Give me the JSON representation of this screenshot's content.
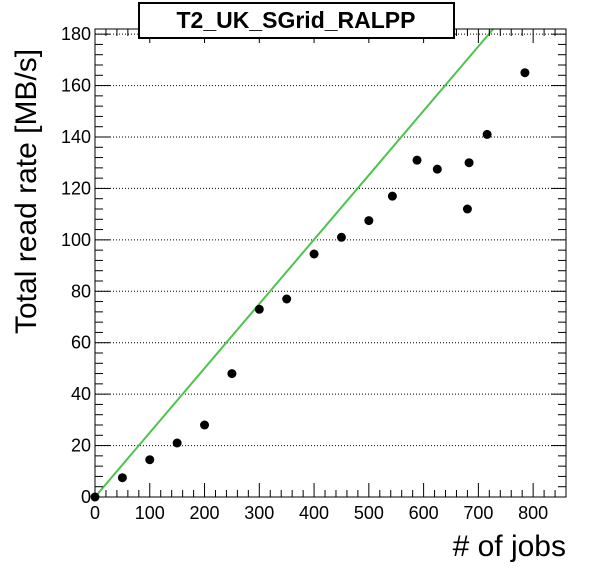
{
  "chart_data": {
    "type": "scatter",
    "title": "T2_UK_SGrid_RALPP",
    "xlabel": "# of jobs",
    "ylabel": "Total read rate [MB/s]",
    "xlim": [
      0,
      860
    ],
    "ylim": [
      0,
      182
    ],
    "xticks": [
      0,
      100,
      200,
      300,
      400,
      500,
      600,
      700,
      800
    ],
    "yticks": [
      0,
      20,
      40,
      60,
      80,
      100,
      120,
      140,
      160,
      180
    ],
    "xtick_labels": [
      "0",
      "100",
      "200",
      "300",
      "400",
      "500",
      "600",
      "700",
      "800"
    ],
    "ytick_labels": [
      "0",
      "20",
      "40",
      "60",
      "80",
      "100",
      "120",
      "140",
      "160",
      "180"
    ],
    "grid": "horizontal dotted",
    "series": [
      {
        "marker": "filled-circle",
        "color": "#000000",
        "points": [
          {
            "x": 0,
            "y": 0
          },
          {
            "x": 50,
            "y": 7.5
          },
          {
            "x": 100,
            "y": 14.5
          },
          {
            "x": 150,
            "y": 21
          },
          {
            "x": 200,
            "y": 28
          },
          {
            "x": 250,
            "y": 48
          },
          {
            "x": 300,
            "y": 73
          },
          {
            "x": 350,
            "y": 77
          },
          {
            "x": 400,
            "y": 94.5
          },
          {
            "x": 450,
            "y": 101
          },
          {
            "x": 500,
            "y": 107.5
          },
          {
            "x": 543,
            "y": 117
          },
          {
            "x": 588,
            "y": 131
          },
          {
            "x": 625,
            "y": 127.5
          },
          {
            "x": 680,
            "y": 112
          },
          {
            "x": 683,
            "y": 130
          },
          {
            "x": 716,
            "y": 141
          },
          {
            "x": 785,
            "y": 165
          }
        ]
      }
    ],
    "reference_line": {
      "color": "#4cc44c",
      "points": [
        {
          "x": 0,
          "y": 0
        },
        {
          "x": 727,
          "y": 182
        }
      ]
    }
  }
}
